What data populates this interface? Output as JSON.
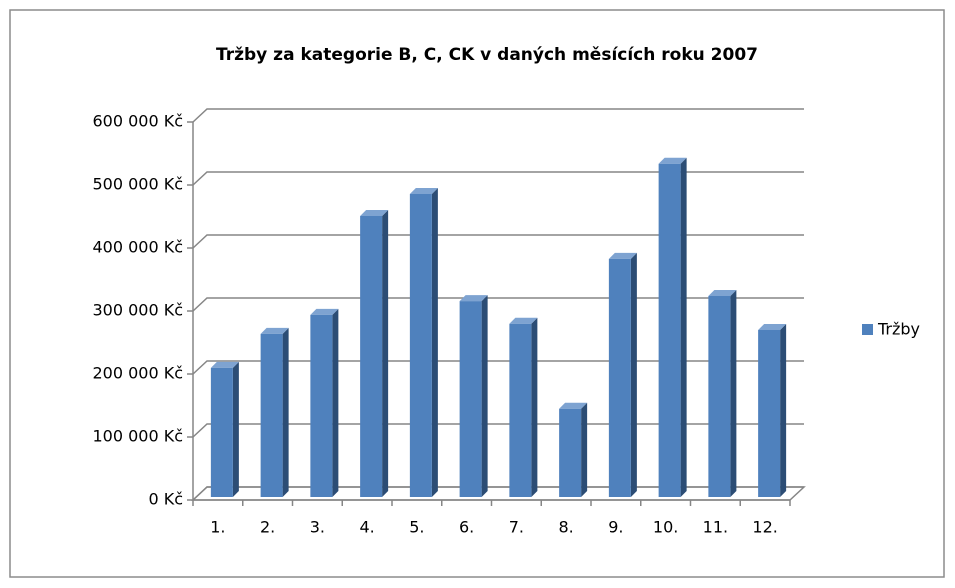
{
  "chart_data": {
    "type": "bar",
    "title": "Tržby za kategorie B, C, CK v daných měsících roku 2007",
    "categories": [
      "1.",
      "2.",
      "3.",
      "4.",
      "5.",
      "6.",
      "7.",
      "8.",
      "9.",
      "10.",
      "11.",
      "12."
    ],
    "series": [
      {
        "name": "Tržby",
        "color": "#4f81bd",
        "values": [
          205000,
          259000,
          289000,
          446000,
          481000,
          311000,
          275000,
          140000,
          378000,
          529000,
          319000,
          265000
        ]
      }
    ],
    "ylim": [
      0,
      600000
    ],
    "yticks": [
      {
        "value": 0,
        "label": "0 Kč"
      },
      {
        "value": 100000,
        "label": "100 000 Kč"
      },
      {
        "value": 200000,
        "label": "200 000 Kč"
      },
      {
        "value": 300000,
        "label": "300 000 Kč"
      },
      {
        "value": 400000,
        "label": "400 000 Kč"
      },
      {
        "value": 500000,
        "label": "500 000 Kč"
      },
      {
        "value": 600000,
        "label": "600 000 Kč"
      }
    ],
    "grid": true,
    "legend": "right"
  }
}
